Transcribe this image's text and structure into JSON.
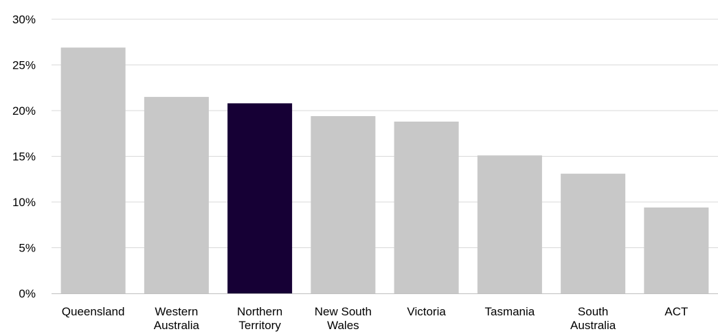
{
  "chart_data": {
    "type": "bar",
    "title": "",
    "xlabel": "",
    "ylabel": "",
    "categories": [
      "Queensland",
      "Western Australia",
      "Northern Territory",
      "New South Wales",
      "Victoria",
      "Tasmania",
      "South Australia",
      "ACT"
    ],
    "category_lines": [
      [
        "Queensland"
      ],
      [
        "Western",
        "Australia"
      ],
      [
        "Northern",
        "Territory"
      ],
      [
        "New South",
        "Wales"
      ],
      [
        "Victoria"
      ],
      [
        "Tasmania"
      ],
      [
        "South",
        "Australia"
      ],
      [
        "ACT"
      ]
    ],
    "values": [
      26.9,
      21.5,
      20.8,
      19.4,
      18.8,
      15.1,
      13.1,
      9.4
    ],
    "highlight": "Northern Territory",
    "ylim": [
      0,
      30
    ],
    "yticks": [
      0,
      5,
      10,
      15,
      20,
      25,
      30
    ],
    "ytick_labels": [
      "0%",
      "5%",
      "10%",
      "15%",
      "20%",
      "25%",
      "30%"
    ],
    "grid": true,
    "legend": "none",
    "colors": {
      "bar": "#c8c8c8",
      "highlight": "#160035",
      "grid": "#d9d9d9",
      "axis": "#bfbfbf"
    }
  }
}
